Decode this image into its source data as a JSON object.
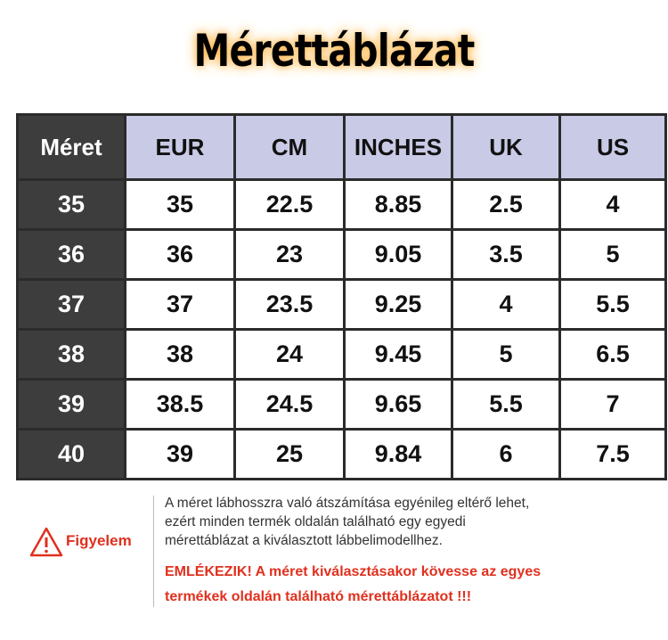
{
  "header": {
    "title": "Mérettáblázat"
  },
  "table": {
    "columns": [
      "Méret",
      "EUR",
      "CM",
      "INCHES",
      "UK",
      "US"
    ],
    "rows": [
      [
        "35",
        "35",
        "22.5",
        "8.85",
        "2.5",
        "4"
      ],
      [
        "36",
        "36",
        "23",
        "9.05",
        "3.5",
        "5"
      ],
      [
        "37",
        "37",
        "23.5",
        "9.25",
        "4",
        "5.5"
      ],
      [
        "38",
        "38",
        "24",
        "9.45",
        "5",
        "6.5"
      ],
      [
        "39",
        "38.5",
        "24.5",
        "9.65",
        "5.5",
        "7"
      ],
      [
        "40",
        "39",
        "25",
        "9.84",
        "6",
        "7.5"
      ]
    ]
  },
  "notice": {
    "label": "Figyelem",
    "text_lines": [
      "A méret lábhosszra való átszámítása egyénileg eltérő lehet,",
      "ezért minden termék oldalán található egy egyedi",
      "mérettáblázat a kiválasztott lábbelimodellhez."
    ],
    "warning_lines": [
      "EMLÉKEZIK! A méret kiválasztásakor kövesse az egyes",
      "termékek oldalán található mérettáblázatot !!!"
    ]
  }
}
